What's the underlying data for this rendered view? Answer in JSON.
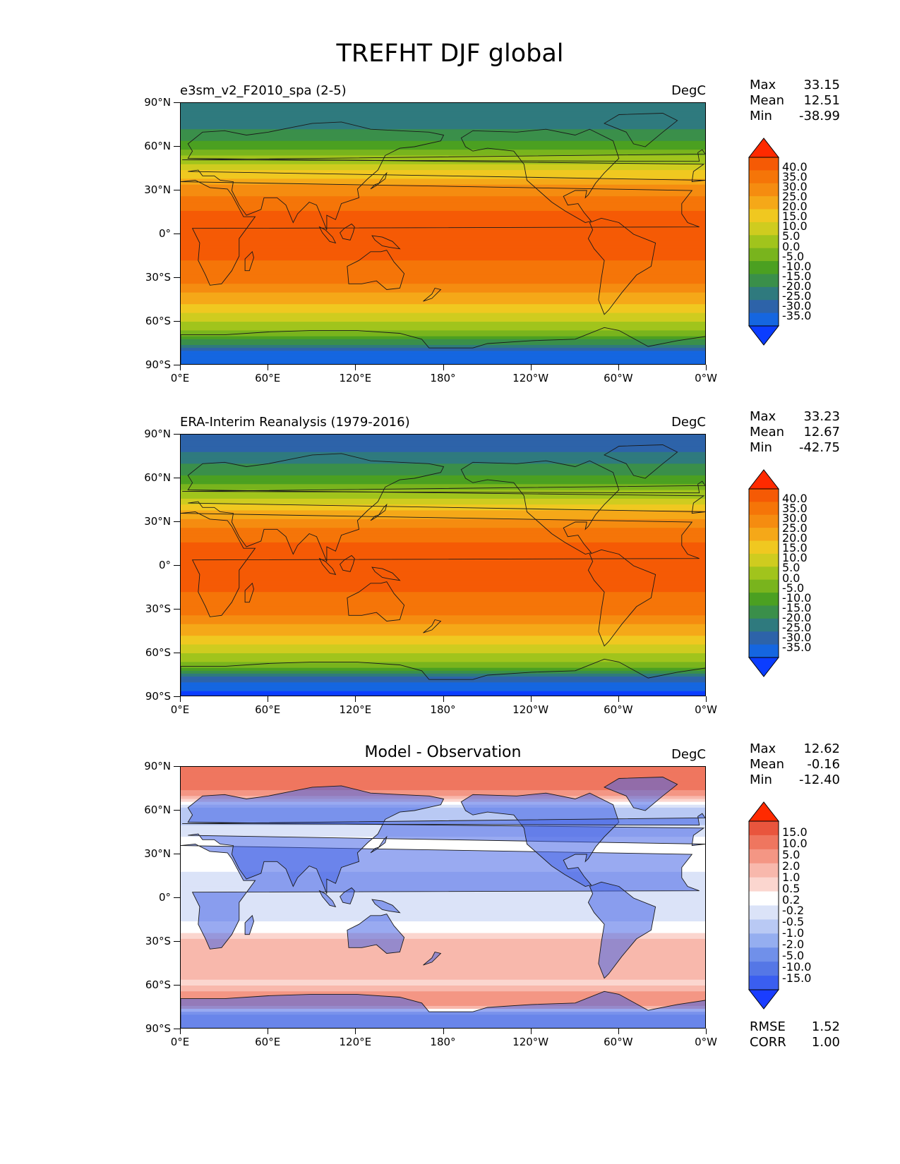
{
  "figure_title": "TREFHT DJF global",
  "colors": {
    "temp_scale": [
      "#0b3dff",
      "#1566e0",
      "#2d63a9",
      "#2f7a7e",
      "#3a8f4a",
      "#4ba021",
      "#79b41d",
      "#a1c41c",
      "#cfcc1f",
      "#f0c820",
      "#f5a818",
      "#f58c10",
      "#f57508",
      "#f55a05",
      "#ff2a00"
    ],
    "diff_scale": [
      "#1a3dff",
      "#3a5ef0",
      "#5577e6",
      "#7090ea",
      "#95aef0",
      "#b9c9f4",
      "#dbe3f8",
      "#ffffff",
      "#fbd6cf",
      "#f8b8ac",
      "#f49684",
      "#ef765f",
      "#e9553d",
      "#ff2a00"
    ],
    "coastline": "#1a1a1a"
  },
  "chart_data": [
    {
      "type": "heatmap",
      "panel_title": "e3sm_v2_F2010_spa (2-5)",
      "units": "DegC",
      "stats": {
        "max": "33.15",
        "mean": "12.51",
        "min": "-38.99"
      },
      "colorbar_ticks": [
        "40.0",
        "35.0",
        "30.0",
        "25.0",
        "20.0",
        "15.0",
        "10.0",
        "5.0",
        "0.0",
        "-5.0",
        "-10.0",
        "-15.0",
        "-20.0",
        "-25.0",
        "-30.0",
        "-35.0"
      ],
      "lat_ticks": [
        "90°N",
        "60°N",
        "30°N",
        "0°",
        "30°S",
        "60°S",
        "90°S"
      ],
      "lon_ticks": [
        "0°E",
        "60°E",
        "120°E",
        "180°",
        "120°W",
        "60°W",
        "0°W"
      ],
      "zonal_profile": [
        {
          "lat": 90,
          "value": -25
        },
        {
          "lat": 75,
          "value": -22
        },
        {
          "lat": 60,
          "value": -12
        },
        {
          "lat": 45,
          "value": 3
        },
        {
          "lat": 30,
          "value": 18
        },
        {
          "lat": 15,
          "value": 25
        },
        {
          "lat": 0,
          "value": 27
        },
        {
          "lat": -15,
          "value": 26
        },
        {
          "lat": -30,
          "value": 22
        },
        {
          "lat": -45,
          "value": 12
        },
        {
          "lat": -55,
          "value": 4
        },
        {
          "lat": -62,
          "value": -1
        },
        {
          "lat": -70,
          "value": -10
        },
        {
          "lat": -80,
          "value": -30
        },
        {
          "lat": -90,
          "value": -35
        }
      ]
    },
    {
      "type": "heatmap",
      "panel_title": "ERA-Interim Reanalysis (1979-2016)",
      "units": "DegC",
      "stats": {
        "max": "33.23",
        "mean": "12.67",
        "min": "-42.75"
      },
      "colorbar_ticks": [
        "40.0",
        "35.0",
        "30.0",
        "25.0",
        "20.0",
        "15.0",
        "10.0",
        "5.0",
        "0.0",
        "-5.0",
        "-10.0",
        "-15.0",
        "-20.0",
        "-25.0",
        "-30.0",
        "-35.0"
      ],
      "lat_ticks": [
        "90°N",
        "60°N",
        "30°N",
        "0°",
        "30°S",
        "60°S",
        "90°S"
      ],
      "lon_ticks": [
        "0°E",
        "60°E",
        "120°E",
        "180°",
        "120°W",
        "60°W",
        "0°W"
      ],
      "zonal_profile": [
        {
          "lat": 90,
          "value": -28
        },
        {
          "lat": 75,
          "value": -24
        },
        {
          "lat": 60,
          "value": -14
        },
        {
          "lat": 45,
          "value": 2
        },
        {
          "lat": 30,
          "value": 18
        },
        {
          "lat": 15,
          "value": 25
        },
        {
          "lat": 0,
          "value": 27
        },
        {
          "lat": -15,
          "value": 26
        },
        {
          "lat": -30,
          "value": 22
        },
        {
          "lat": -45,
          "value": 12
        },
        {
          "lat": -55,
          "value": 4
        },
        {
          "lat": -62,
          "value": -1
        },
        {
          "lat": -70,
          "value": -10
        },
        {
          "lat": -80,
          "value": -32
        },
        {
          "lat": -90,
          "value": -38
        }
      ]
    },
    {
      "type": "heatmap",
      "panel_title": "Model - Observation",
      "units": "DegC",
      "stats": {
        "max": "12.62",
        "mean": "-0.16",
        "min": "-12.40"
      },
      "colorbar_ticks": [
        "15.0",
        "10.0",
        "5.0",
        "2.0",
        "1.0",
        "0.5",
        "0.2",
        "-0.2",
        "-0.5",
        "-1.0",
        "-2.0",
        "-5.0",
        "-10.0",
        "-15.0"
      ],
      "lat_ticks": [
        "90°N",
        "60°N",
        "30°N",
        "0°",
        "30°S",
        "60°S",
        "90°S"
      ],
      "lon_ticks": [
        "0°E",
        "60°E",
        "120°E",
        "180°",
        "120°W",
        "60°W",
        "0°W"
      ],
      "rmse": {
        "label": "RMSE",
        "value": "1.52"
      },
      "corr": {
        "label": "CORR",
        "value": "1.00"
      },
      "zonal_profile": [
        {
          "lat": 90,
          "value": 3
        },
        {
          "lat": 75,
          "value": 2
        },
        {
          "lat": 60,
          "value": -1
        },
        {
          "lat": 45,
          "value": -0.3
        },
        {
          "lat": 30,
          "value": 0.1
        },
        {
          "lat": 15,
          "value": -0.3
        },
        {
          "lat": 0,
          "value": -0.4
        },
        {
          "lat": -15,
          "value": -0.3
        },
        {
          "lat": -30,
          "value": 0.6
        },
        {
          "lat": -45,
          "value": 0.7
        },
        {
          "lat": -60,
          "value": 0.4
        },
        {
          "lat": -70,
          "value": 2
        },
        {
          "lat": -80,
          "value": -1
        },
        {
          "lat": -90,
          "value": -1.2
        }
      ]
    }
  ]
}
